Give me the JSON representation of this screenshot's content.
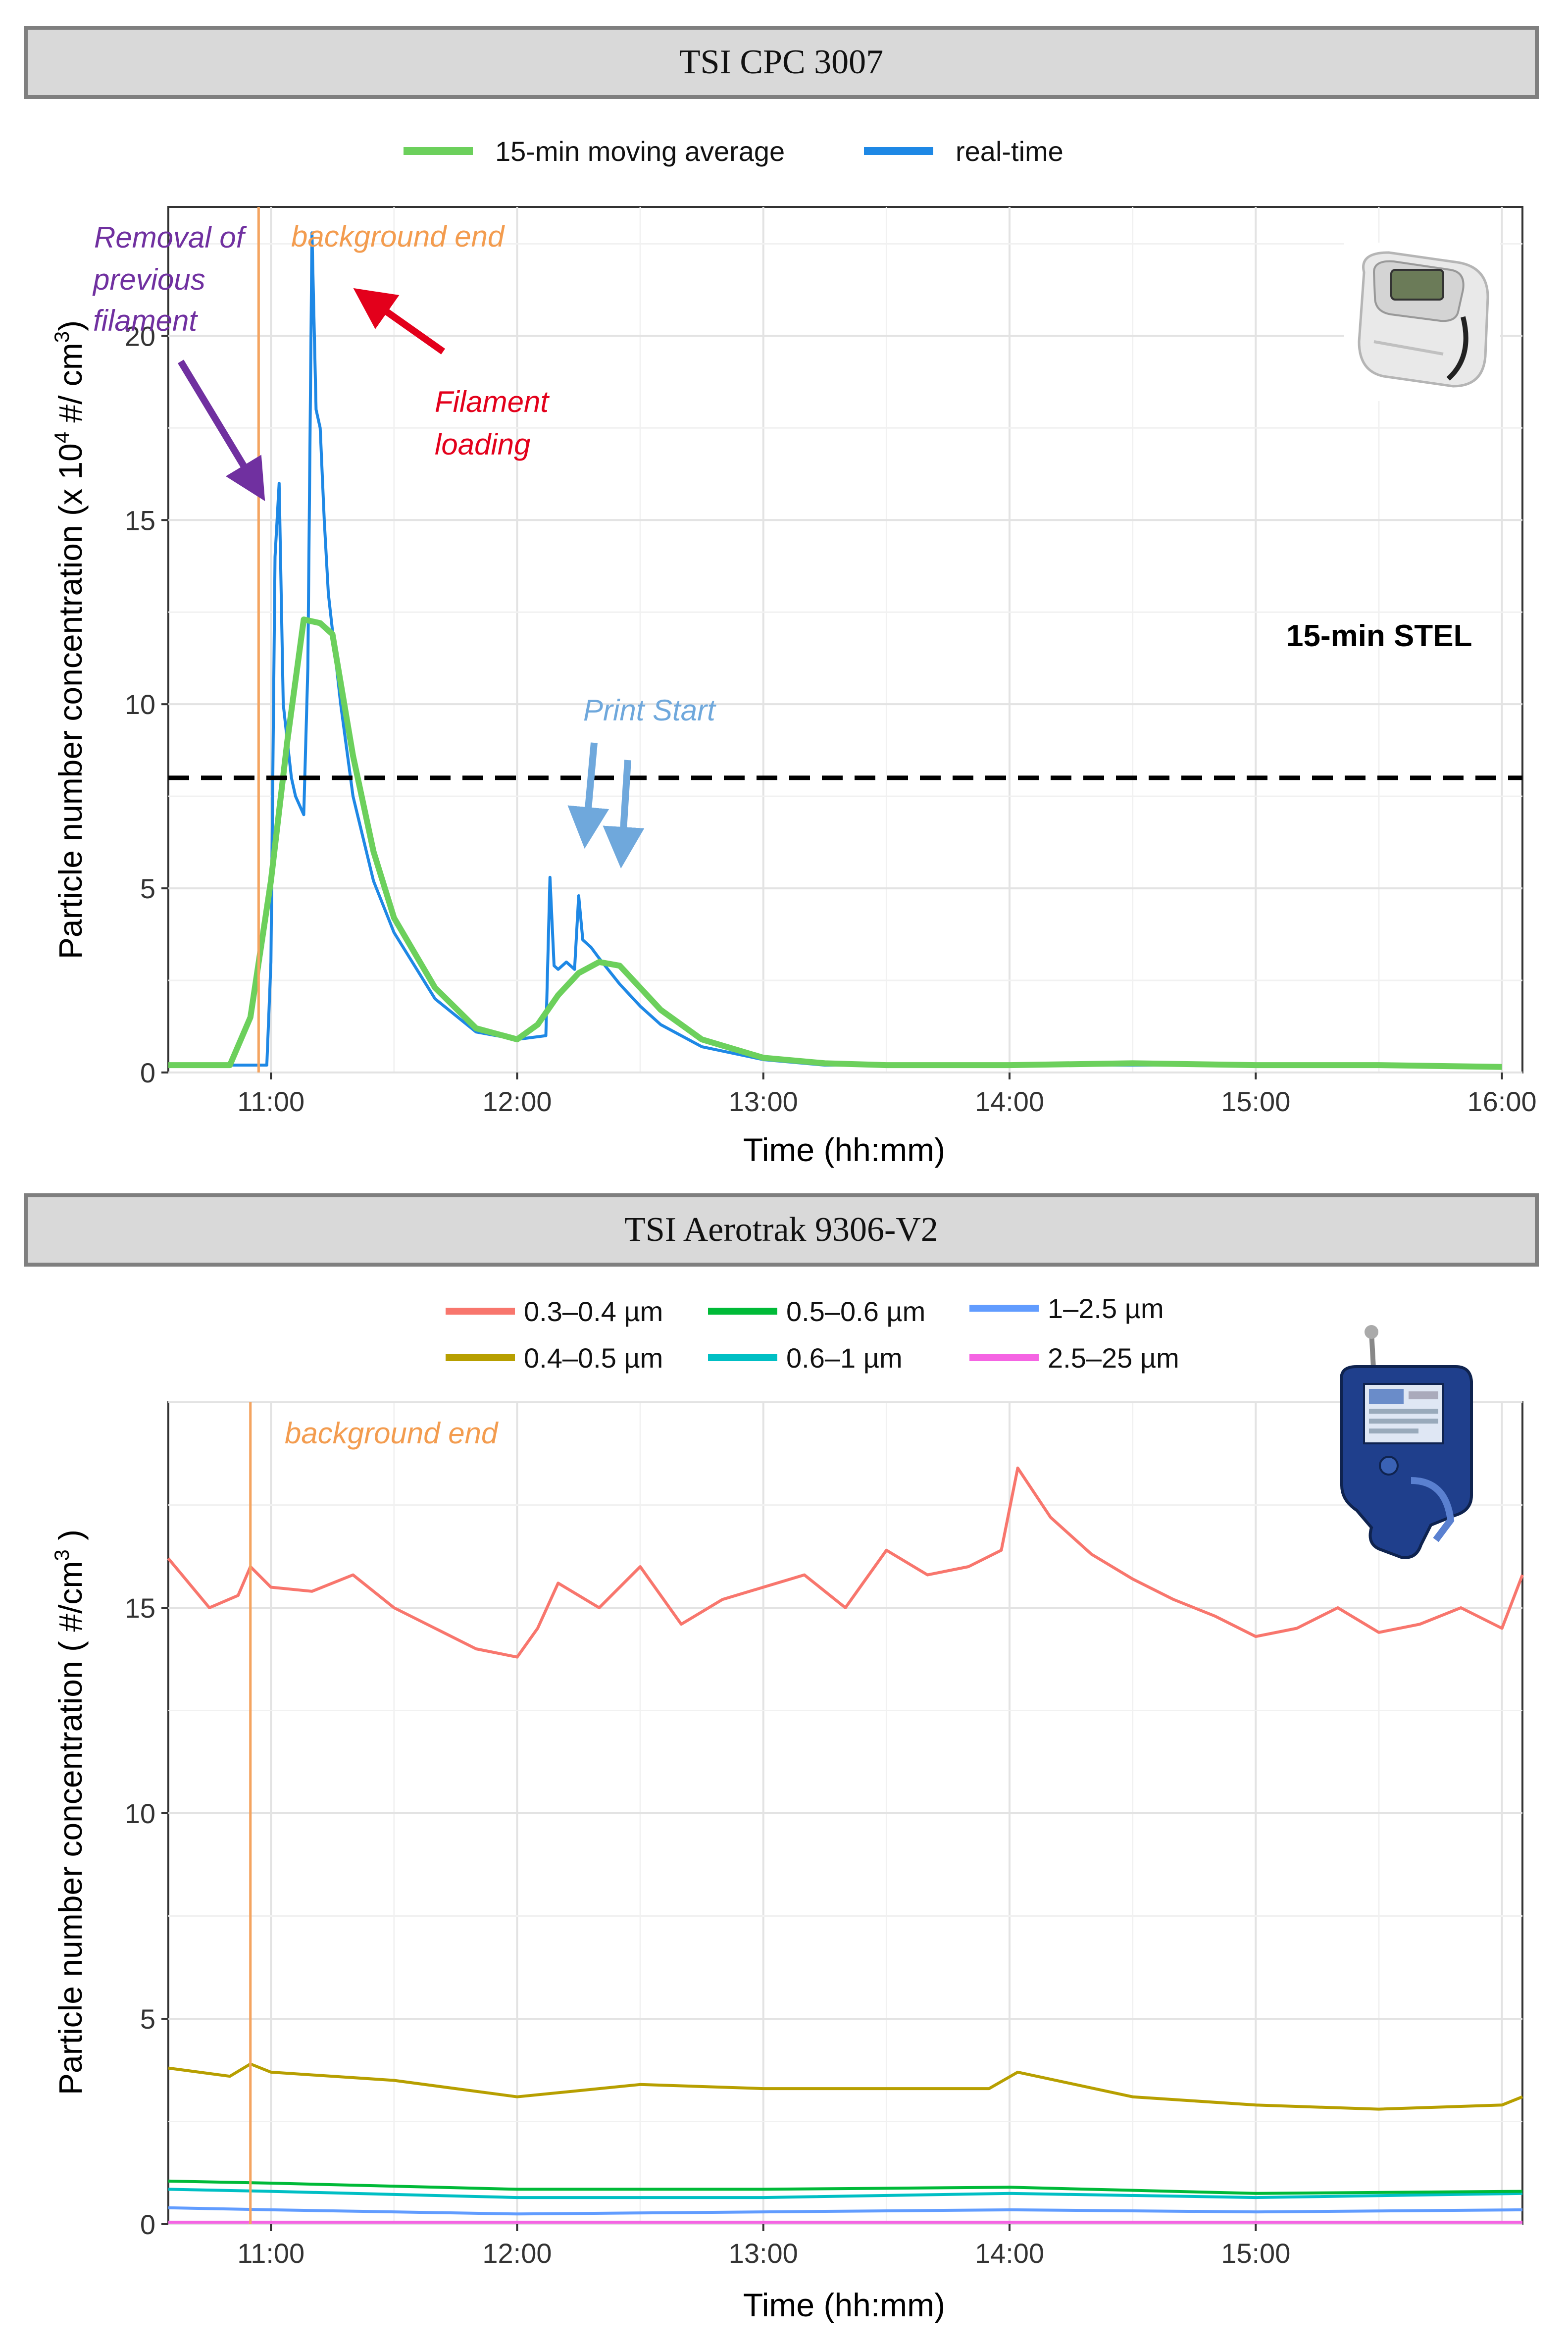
{
  "panels": [
    {
      "banner": "TSI CPC 3007"
    },
    {
      "banner": "TSI Aerotrak 9306-V2"
    }
  ],
  "colors": {
    "moving_avg": "#6cd05c",
    "realtime": "#1e88e5",
    "background_line": "#f4a460",
    "purple": "#7030a0",
    "red": "#e3001b",
    "print_arrow": "#6fa8dc",
    "s03": "#f8766d",
    "s04": "#b79f00",
    "s05": "#00ba38",
    "s06": "#00bfc4",
    "s1": "#619cff",
    "s25": "#f564e3"
  },
  "icons": [
    "cpc-device-icon",
    "aerotrak-device-icon"
  ],
  "chart_data": [
    {
      "type": "line",
      "title": "TSI CPC 3007",
      "xlabel": "Time (hh:mm)",
      "ylabel_pre": "Particle number concentration (x 10",
      "ylabel_exp1": "4",
      "ylabel_mid": " #/ cm",
      "ylabel_exp2": "3",
      "ylabel_post": ")",
      "xlim": [
        "10:35",
        "16:05"
      ],
      "ylim": [
        0,
        23.5
      ],
      "xticks": [
        "11:00",
        "12:00",
        "13:00",
        "14:00",
        "15:00",
        "16:00"
      ],
      "yticks": [
        0,
        5,
        10,
        15,
        20
      ],
      "grid": true,
      "legend_position": "top",
      "series": [
        {
          "name": "15-min moving average",
          "x": [
            "10:35",
            "10:40",
            "10:50",
            "10:55",
            "11:00",
            "11:04",
            "11:08",
            "11:12",
            "11:15",
            "11:20",
            "11:25",
            "11:30",
            "11:40",
            "11:50",
            "12:00",
            "12:05",
            "12:10",
            "12:15",
            "12:20",
            "12:25",
            "12:30",
            "12:35",
            "12:45",
            "13:00",
            "13:15",
            "13:30",
            "14:00",
            "14:30",
            "15:00",
            "15:30",
            "16:00"
          ],
          "values": [
            0.2,
            0.2,
            0.2,
            1.5,
            5.2,
            9.0,
            12.3,
            12.2,
            11.9,
            8.6,
            6.0,
            4.2,
            2.3,
            1.2,
            0.9,
            1.3,
            2.1,
            2.7,
            3.0,
            2.9,
            2.3,
            1.7,
            0.9,
            0.4,
            0.25,
            0.2,
            0.2,
            0.25,
            0.2,
            0.2,
            0.15
          ]
        },
        {
          "name": "real-time",
          "x": [
            "10:35",
            "10:45",
            "10:55",
            "10:59",
            "11:00",
            "11:01",
            "11:02",
            "11:03",
            "11:04",
            "11:05",
            "11:06",
            "11:08",
            "11:09",
            "11:10",
            "11:11",
            "11:12",
            "11:13",
            "11:14",
            "11:15",
            "11:17",
            "11:20",
            "11:25",
            "11:30",
            "11:40",
            "11:50",
            "12:00",
            "12:07",
            "12:08",
            "12:09",
            "12:10",
            "12:12",
            "12:14",
            "12:15",
            "12:16",
            "12:18",
            "12:20",
            "12:25",
            "12:30",
            "12:35",
            "12:45",
            "13:00",
            "13:15",
            "13:30",
            "14:00",
            "14:30",
            "15:00",
            "15:30",
            "16:00"
          ],
          "values": [
            0.2,
            0.2,
            0.2,
            0.2,
            3.0,
            14.0,
            16.0,
            10.0,
            9.0,
            8.0,
            7.5,
            7.0,
            11.0,
            22.8,
            18.0,
            17.5,
            15.0,
            13.0,
            12.0,
            10.0,
            7.5,
            5.2,
            3.8,
            2.0,
            1.1,
            0.9,
            1.0,
            5.3,
            2.9,
            2.8,
            3.0,
            2.8,
            4.8,
            3.6,
            3.4,
            3.1,
            2.4,
            1.8,
            1.3,
            0.7,
            0.35,
            0.2,
            0.2,
            0.2,
            0.2,
            0.2,
            0.2,
            0.15
          ]
        }
      ],
      "hline": {
        "y": 8,
        "label": "15-min STEL"
      },
      "annotations": [
        {
          "text": "background end",
          "at": "10:57"
        },
        {
          "text": "Removal of"
        },
        {
          "text": "previous"
        },
        {
          "text": "filament"
        },
        {
          "text": "Filament"
        },
        {
          "text": "loading"
        },
        {
          "text": "Print Start"
        }
      ]
    },
    {
      "type": "line",
      "title": "TSI Aerotrak 9306-V2",
      "xlabel": "Time (hh:mm)",
      "ylabel_pre": "Particle number concentration ( #/cm",
      "ylabel_exp": "3",
      "ylabel_post": " )",
      "xlim": [
        "10:35",
        "16:05"
      ],
      "ylim": [
        0,
        20
      ],
      "xticks": [
        "11:00",
        "12:00",
        "13:00",
        "14:00",
        "15:00"
      ],
      "yticks": [
        0,
        5,
        10,
        15
      ],
      "grid": true,
      "legend_position": "top",
      "annotations": [
        {
          "text": "background end",
          "at": "10:55"
        }
      ],
      "series": [
        {
          "name": "0.3–0.4 µm",
          "x": [
            "10:35",
            "10:45",
            "10:52",
            "10:55",
            "11:00",
            "11:10",
            "11:20",
            "11:30",
            "11:40",
            "11:50",
            "12:00",
            "12:05",
            "12:10",
            "12:20",
            "12:30",
            "12:40",
            "12:50",
            "13:00",
            "13:10",
            "13:20",
            "13:30",
            "13:40",
            "13:50",
            "13:58",
            "14:02",
            "14:10",
            "14:20",
            "14:30",
            "14:40",
            "14:50",
            "15:00",
            "15:10",
            "15:20",
            "15:30",
            "15:40",
            "15:50",
            "16:00",
            "16:05"
          ],
          "values": [
            16.2,
            15.0,
            15.3,
            16.0,
            15.5,
            15.4,
            15.8,
            15.0,
            14.5,
            14.0,
            13.8,
            14.5,
            15.6,
            15.0,
            16.0,
            14.6,
            15.2,
            15.5,
            15.8,
            15.0,
            16.4,
            15.8,
            16.0,
            16.4,
            18.4,
            17.2,
            16.3,
            15.7,
            15.2,
            14.8,
            14.3,
            14.5,
            15.0,
            14.4,
            14.6,
            15.0,
            14.5,
            15.8
          ]
        },
        {
          "name": "0.4–0.5 µm",
          "x": [
            "10:35",
            "10:50",
            "10:55",
            "11:00",
            "11:30",
            "12:00",
            "12:30",
            "13:00",
            "13:30",
            "13:55",
            "14:02",
            "14:30",
            "15:00",
            "15:30",
            "16:00",
            "16:05"
          ],
          "values": [
            3.8,
            3.6,
            3.9,
            3.7,
            3.5,
            3.1,
            3.4,
            3.3,
            3.3,
            3.3,
            3.7,
            3.1,
            2.9,
            2.8,
            2.9,
            3.1
          ]
        },
        {
          "name": "0.5–0.6 µm",
          "x": [
            "10:35",
            "11:00",
            "12:00",
            "13:00",
            "14:00",
            "15:00",
            "16:05"
          ],
          "values": [
            1.05,
            1.0,
            0.85,
            0.85,
            0.9,
            0.75,
            0.8
          ]
        },
        {
          "name": "0.6–1 µm",
          "x": [
            "10:35",
            "11:00",
            "12:00",
            "13:00",
            "14:00",
            "15:00",
            "16:05"
          ],
          "values": [
            0.85,
            0.8,
            0.65,
            0.65,
            0.75,
            0.65,
            0.75
          ]
        },
        {
          "name": "1–2.5 µm",
          "x": [
            "10:35",
            "11:00",
            "12:00",
            "13:00",
            "14:00",
            "15:00",
            "16:05"
          ],
          "values": [
            0.4,
            0.35,
            0.25,
            0.3,
            0.35,
            0.3,
            0.35
          ]
        },
        {
          "name": "2.5–25 µm",
          "x": [
            "10:35",
            "16:05"
          ],
          "values": [
            0.05,
            0.05
          ]
        }
      ]
    }
  ]
}
